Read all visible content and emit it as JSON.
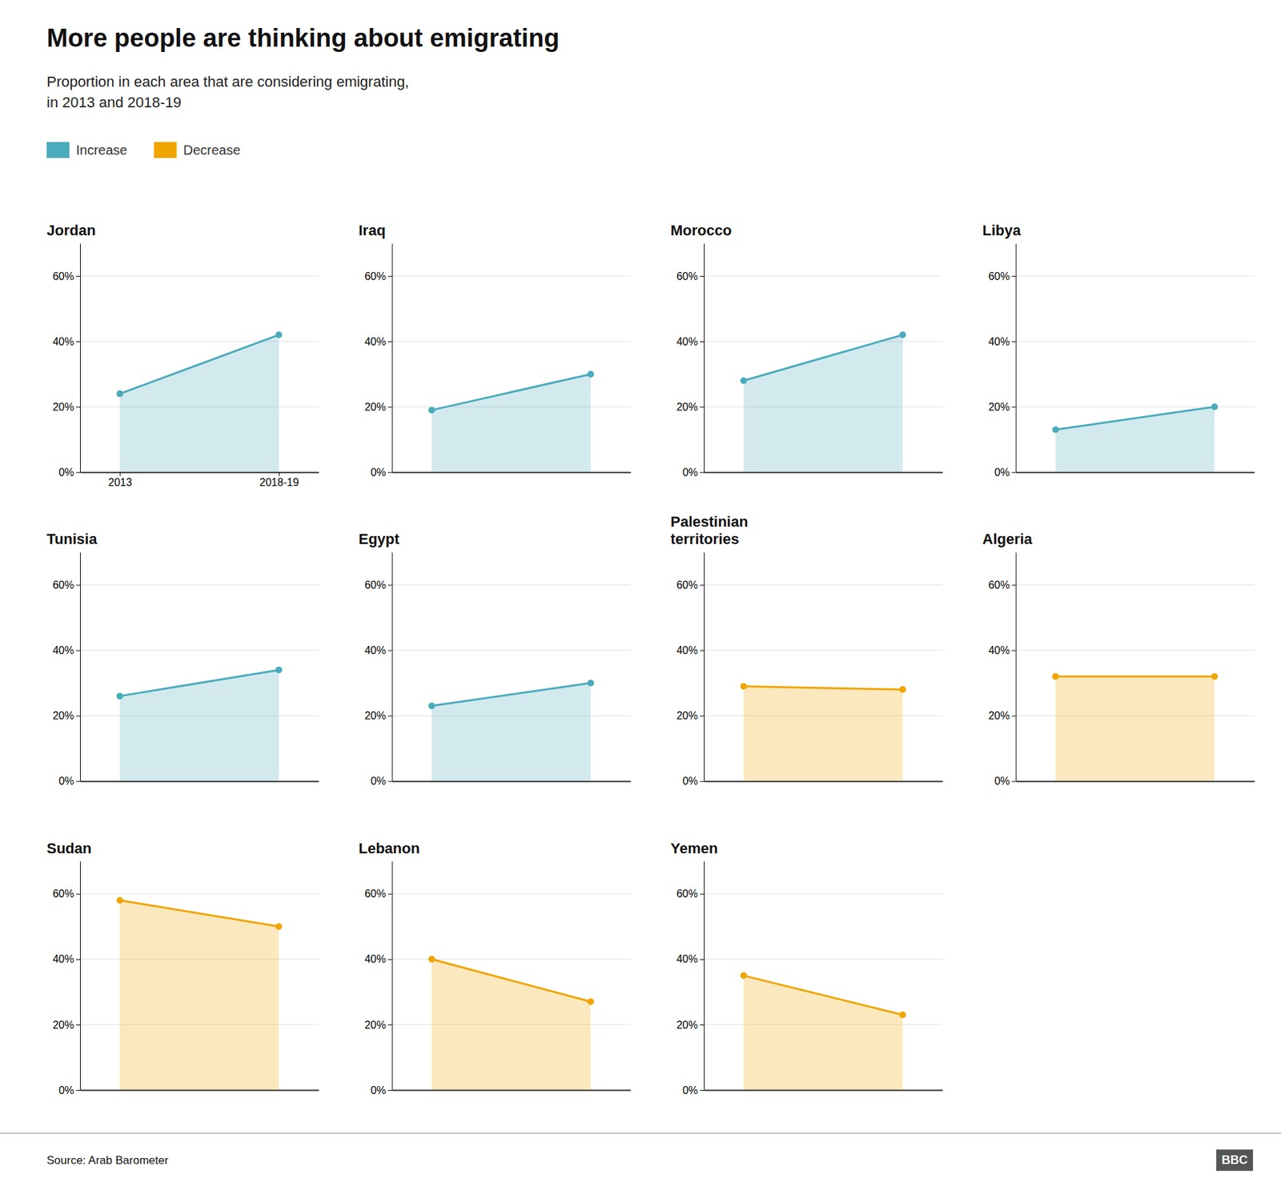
{
  "title": "More people are thinking about emigrating",
  "subtitle": "Proportion in each area that are considering emigrating,\nin 2013 and 2018-19",
  "source": "Source: Arab Barometer",
  "logo": "BBC",
  "chart_data": [
    {
      "type": "area",
      "title": "Jordan",
      "categories": [
        "2013",
        "2018-19"
      ],
      "series": [
        {
          "name": "Increase",
          "color": "#4aabbc",
          "values": [
            24,
            42
          ]
        }
      ],
      "marker": "circle",
      "ylim": [
        0,
        70
      ],
      "yticks": [
        {
          "value": 0,
          "label": "0%"
        },
        {
          "value": 20,
          "label": "20%"
        },
        {
          "value": 40,
          "label": "40%"
        },
        {
          "value": 60,
          "label": "60%"
        }
      ],
      "grid": true
    },
    {
      "type": "area",
      "title": "Iraq",
      "categories": [
        null,
        null
      ],
      "series": [
        {
          "name": "Increase",
          "color": "#4aabbc",
          "values": [
            19,
            30
          ]
        }
      ],
      "marker": "circle",
      "ylim": [
        0,
        70
      ],
      "yticks": [
        {
          "value": 0,
          "label": "0%"
        },
        {
          "value": 20,
          "label": "20%"
        },
        {
          "value": 40,
          "label": "40%"
        },
        {
          "value": 60,
          "label": "60%"
        }
      ],
      "grid": true,
      "tick_labels": "y"
    },
    {
      "type": "area",
      "title": "Morocco",
      "categories": [
        null,
        null
      ],
      "series": [
        {
          "name": "Increase",
          "color": "#4aabbc",
          "values": [
            28,
            42
          ]
        }
      ],
      "marker": "circle",
      "ylim": [
        0,
        70
      ],
      "yticks": [
        {
          "value": 0,
          "label": "0%"
        },
        {
          "value": 20,
          "label": "20%"
        },
        {
          "value": 40,
          "label": "40%"
        },
        {
          "value": 60,
          "label": "60%"
        }
      ],
      "grid": true,
      "tick_labels": "y"
    },
    {
      "type": "area",
      "title": "Libya",
      "categories": [
        null,
        null
      ],
      "series": [
        {
          "name": "Increase",
          "color": "#4aabbc",
          "values": [
            13,
            20
          ]
        }
      ],
      "marker": "circle",
      "ylim": [
        0,
        70
      ],
      "yticks": [
        {
          "value": 0,
          "label": "0%"
        },
        {
          "value": 20,
          "label": "20%"
        },
        {
          "value": 40,
          "label": "40%"
        },
        {
          "value": 60,
          "label": "60%"
        }
      ],
      "grid": true,
      "tick_labels": "y"
    },
    {
      "type": "area",
      "title": "Tunisia",
      "categories": [
        null,
        null
      ],
      "series": [
        {
          "name": "Increase",
          "color": "#4aabbc",
          "values": [
            26,
            34
          ]
        }
      ],
      "marker": "circle",
      "ylim": [
        0,
        70
      ],
      "yticks": [
        {
          "value": 0,
          "label": "0%"
        },
        {
          "value": 20,
          "label": "20%"
        },
        {
          "value": 40,
          "label": "40%"
        },
        {
          "value": 60,
          "label": "60%"
        }
      ],
      "grid": true,
      "tick_labels": "y"
    },
    {
      "type": "area",
      "title": "Egypt",
      "categories": [
        null,
        null
      ],
      "series": [
        {
          "name": "Increase",
          "color": "#4aabbc",
          "values": [
            23,
            30
          ]
        }
      ],
      "marker": "circle",
      "ylim": [
        0,
        70
      ],
      "yticks": [
        {
          "value": 0,
          "label": "0%"
        },
        {
          "value": 20,
          "label": "20%"
        },
        {
          "value": 40,
          "label": "40%"
        },
        {
          "value": 60,
          "label": "60%"
        }
      ],
      "grid": true,
      "tick_labels": "y"
    },
    {
      "type": "area",
      "title": "Palestinian\nterritories",
      "categories": [
        null,
        null
      ],
      "series": [
        {
          "name": "Decrease",
          "color": "#f0a500",
          "values": [
            29,
            28
          ]
        }
      ],
      "marker": "circle",
      "ylim": [
        0,
        70
      ],
      "yticks": [
        {
          "value": 0,
          "label": "0%"
        },
        {
          "value": 20,
          "label": "20%"
        },
        {
          "value": 40,
          "label": "40%"
        },
        {
          "value": 60,
          "label": "60%"
        }
      ],
      "grid": true,
      "tick_labels": "y"
    },
    {
      "type": "area",
      "title": "Algeria",
      "categories": [
        null,
        null
      ],
      "series": [
        {
          "name": "Decrease",
          "color": "#f0a500",
          "values": [
            32,
            32
          ]
        }
      ],
      "marker": "circle",
      "ylim": [
        0,
        70
      ],
      "yticks": [
        {
          "value": 0,
          "label": "0%"
        },
        {
          "value": 20,
          "label": "20%"
        },
        {
          "value": 40,
          "label": "40%"
        },
        {
          "value": 60,
          "label": "60%"
        }
      ],
      "grid": true,
      "tick_labels": "y"
    },
    {
      "type": "area",
      "title": "Sudan",
      "categories": [
        null,
        null
      ],
      "series": [
        {
          "name": "Decrease",
          "color": "#f0a500",
          "values": [
            58,
            50
          ]
        }
      ],
      "marker": "circle",
      "ylim": [
        0,
        70
      ],
      "yticks": [
        {
          "value": 0,
          "label": "0%"
        },
        {
          "value": 20,
          "label": "20%"
        },
        {
          "value": 40,
          "label": "40%"
        },
        {
          "value": 60,
          "label": "60%"
        }
      ],
      "grid": true,
      "tick_labels": "y"
    },
    {
      "type": "area",
      "title": "Lebanon",
      "categories": [
        null,
        null
      ],
      "series": [
        {
          "name": "Decrease",
          "color": "#f0a500",
          "values": [
            40,
            27
          ]
        }
      ],
      "marker": "circle",
      "ylim": [
        0,
        70
      ],
      "yticks": [
        {
          "value": 0,
          "label": "0%"
        },
        {
          "value": 20,
          "label": "20%"
        },
        {
          "value": 40,
          "label": "40%"
        },
        {
          "value": 60,
          "label": "60%"
        }
      ],
      "grid": true,
      "tick_labels": "y"
    },
    {
      "type": "area",
      "title": "Yemen",
      "categories": [
        null,
        null
      ],
      "series": [
        {
          "name": "Decrease",
          "color": "#f0a500",
          "values": [
            35,
            23
          ]
        }
      ],
      "marker": "circle",
      "ylim": [
        0,
        70
      ],
      "yticks": [
        {
          "value": 0,
          "label": "0%"
        },
        {
          "value": 20,
          "label": "20%"
        },
        {
          "value": 40,
          "label": "40%"
        },
        {
          "value": 60,
          "label": "60%"
        }
      ],
      "grid": true,
      "tick_labels": "y"
    }
  ]
}
